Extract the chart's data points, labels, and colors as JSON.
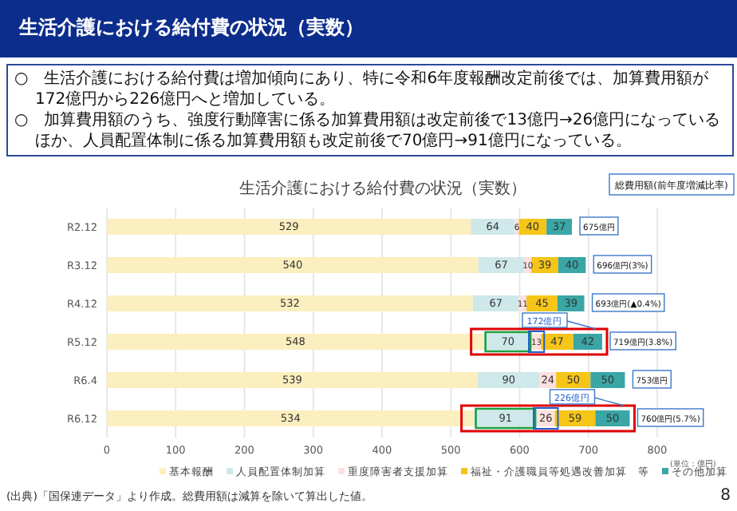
{
  "chart_data": {
    "type": "bar",
    "orientation": "horizontal",
    "stacked": true,
    "title": "生活介護における給付費の状況（実数）",
    "subtitle": "生活介護における給付費の状況（実数）",
    "categories": [
      "R2.12",
      "R3.12",
      "R4.12",
      "R5.12",
      "R6.4",
      "R6.12"
    ],
    "series": [
      {
        "name": "基本報酬",
        "color": "#fbefbf",
        "values": [
          529,
          540,
          532,
          548,
          539,
          534
        ]
      },
      {
        "name": "人員配置体制加算",
        "color": "#cfe8ea",
        "values": [
          64,
          67,
          67,
          70,
          90,
          91
        ]
      },
      {
        "name": "重度障害者支援加算",
        "color": "#fde0e0",
        "values": [
          6,
          10,
          11,
          13,
          24,
          26
        ]
      },
      {
        "name": "福祉・介護職員等処遇改善加算　等",
        "color": "#f5c518",
        "values": [
          40,
          39,
          45,
          47,
          50,
          59
        ]
      },
      {
        "name": "その他加算",
        "color": "#3aa6a6",
        "values": [
          37,
          40,
          39,
          42,
          50,
          50
        ]
      }
    ],
    "xlim": [
      0,
      800
    ],
    "xticks": [
      0,
      100,
      200,
      300,
      400,
      500,
      600,
      700,
      800
    ],
    "grid": "x",
    "legend": "bottom",
    "data_labels": true,
    "totals": [
      "675億円",
      "696億円(3%)",
      "693億円(▲0.4%)",
      "719億円(3.8%)",
      "753億円",
      "760億円(5.7%)"
    ],
    "annotations": [
      "○　生活介護における給付費は増加傾向にあり、特に令和6年度報酬改定前後では、加算費用額が172億円から226億円へと増加している。",
      "○　加算費用額のうち、強度行動障害に係る加算費用額は改定前後で13億円→26億円になっているほか、人員配置体制に係る加算費用額も改定前後で70億円→91億円になっている。",
      "総費用額(前年度増減比率)",
      "172億円",
      "226億円",
      "(単位：億円)",
      "(出典)「国保連データ」より作成。総費用額は減算を除いて算出した値。",
      "8"
    ]
  }
}
